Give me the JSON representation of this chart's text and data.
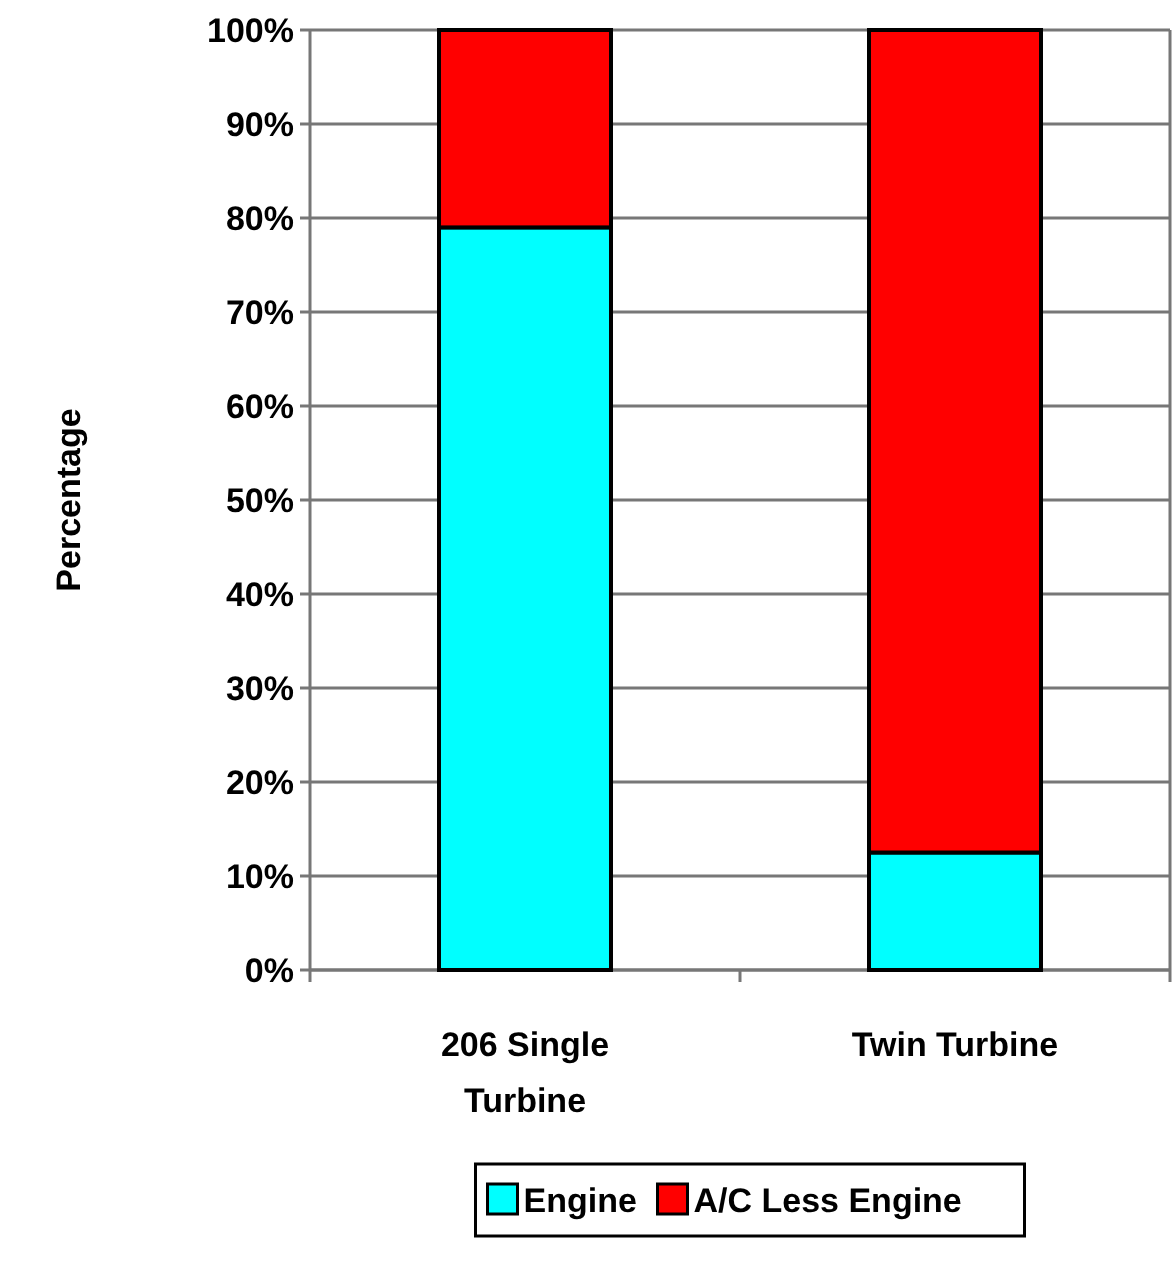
{
  "chart_data": {
    "type": "bar",
    "stacked": true,
    "ylabel": "Percentage",
    "categories": [
      "206 Single Turbine",
      "Twin Turbine"
    ],
    "series": [
      {
        "name": "Engine",
        "color": "#00ffff",
        "values": [
          79,
          12.5
        ]
      },
      {
        "name": "A/C Less Engine",
        "color": "#ff0000",
        "values": [
          21,
          87.5
        ]
      }
    ],
    "ylim": [
      0,
      100
    ],
    "yticks": [
      {
        "value": 0,
        "label": "0%"
      },
      {
        "value": 10,
        "label": "10%"
      },
      {
        "value": 20,
        "label": "20%"
      },
      {
        "value": 30,
        "label": "30%"
      },
      {
        "value": 40,
        "label": "40%"
      },
      {
        "value": 50,
        "label": "50%"
      },
      {
        "value": 60,
        "label": "60%"
      },
      {
        "value": 70,
        "label": "70%"
      },
      {
        "value": 80,
        "label": "80%"
      },
      {
        "value": 90,
        "label": "90%"
      },
      {
        "value": 100,
        "label": "100%"
      }
    ],
    "grid": "y",
    "legend": "bottom"
  }
}
